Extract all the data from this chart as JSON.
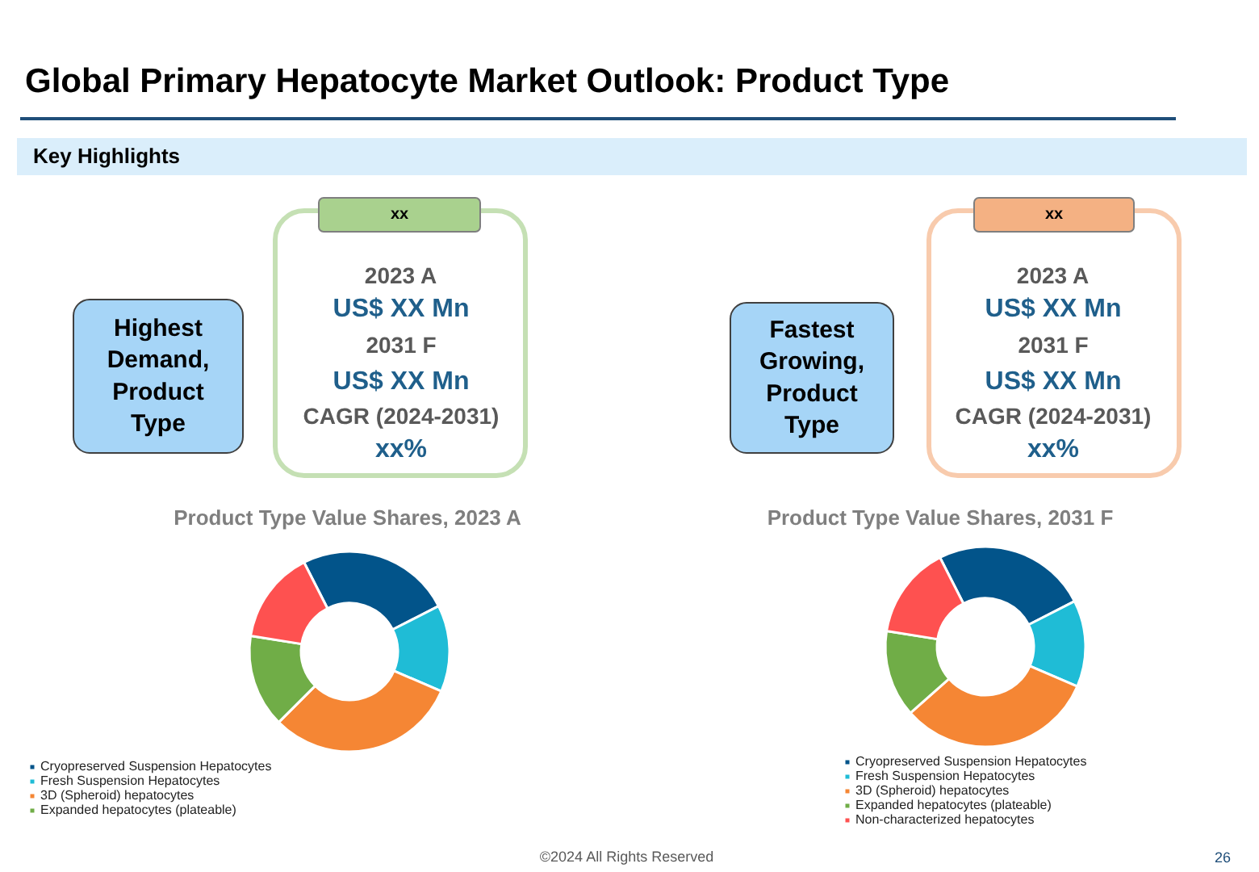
{
  "chart_data": [
    {
      "type": "other",
      "title": "Global Primary Hepatocyte Market Outlook: Product Type",
      "subtitle": "Key Highlights",
      "annotations": [
        "Highest Demand, Product Type",
        "xx",
        "2023 A",
        "US$ XX Mn",
        "2031 F",
        "US$ XX Mn",
        "CAGR (2024-2031)",
        "xx%"
      ]
    },
    {
      "type": "other",
      "annotations": [
        "Fastest Growing, Product Type",
        "xx",
        "2023 A",
        "US$ XX Mn",
        "2031 F",
        "US$ XX Mn",
        "CAGR (2024-2031)",
        "xx%"
      ]
    },
    {
      "type": "donut",
      "title": "Product Type Value Shares, 2023 A",
      "categories": [
        "Cryopreserved Suspension Hepatocytes",
        "Fresh Suspension Hepatocytes",
        "3D (Spheroid) hepatocytes",
        "Expanded hepatocytes (plateable)",
        null
      ],
      "values": [
        25,
        14,
        31,
        15,
        15
      ],
      "colors": [
        "#02548a",
        "#1fbcd6",
        "#f58634",
        "#70ad47",
        "#fe5150"
      ],
      "legend": "bottom"
    },
    {
      "type": "donut",
      "title": "Product Type Value Shares, 2031 F",
      "categories": [
        "Cryopreserved Suspension Hepatocytes",
        "Fresh Suspension Hepatocytes",
        "3D (Spheroid) hepatocytes",
        "Expanded hepatocytes (plateable)",
        "Non-characterized hepatocytes"
      ],
      "values": [
        25,
        14,
        32,
        14,
        15
      ],
      "colors": [
        "#02548a",
        "#1fbcd6",
        "#f58634",
        "#70ad47",
        "#fe5150"
      ],
      "legend": "bottom",
      "annotations": [
        "©2024 All Rights Reserved",
        "26"
      ]
    }
  ]
}
